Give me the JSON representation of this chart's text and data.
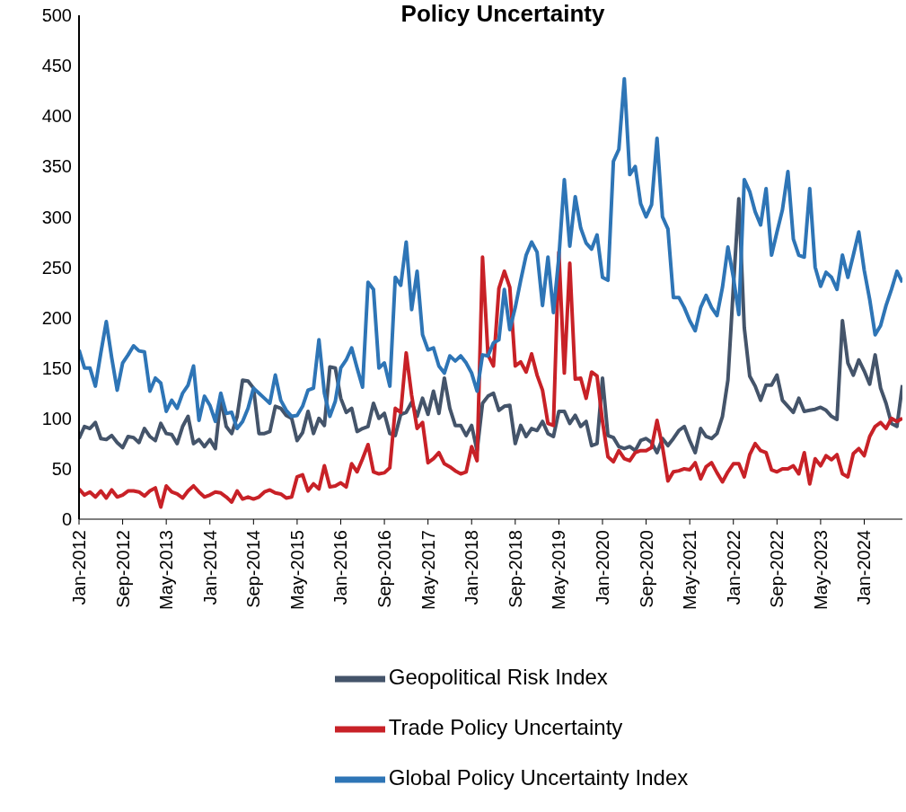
{
  "chart_data": {
    "type": "line",
    "title": "Policy Uncertainty",
    "categories": [
      "Jan-2012",
      null,
      null,
      null,
      null,
      null,
      null,
      null,
      "Sep-2012",
      null,
      null,
      null,
      null,
      null,
      null,
      null,
      "May-2013",
      null,
      null,
      null,
      null,
      null,
      null,
      null,
      "Jan-2014",
      null,
      null,
      null,
      null,
      null,
      null,
      null,
      "Sep-2014",
      null,
      null,
      null,
      null,
      null,
      null,
      null,
      "May-2015",
      null,
      null,
      null,
      null,
      null,
      null,
      null,
      "Jan-2016",
      null,
      null,
      null,
      null,
      null,
      null,
      null,
      "Sep-2016",
      null,
      null,
      null,
      null,
      null,
      null,
      null,
      "May-2017",
      null,
      null,
      null,
      null,
      null,
      null,
      null,
      "Jan-2018",
      null,
      null,
      null,
      null,
      null,
      null,
      null,
      "Sep-2018",
      null,
      null,
      null,
      null,
      null,
      null,
      null,
      "May-2019",
      null,
      null,
      null,
      null,
      null,
      null,
      null,
      "Jan-2020",
      null,
      null,
      null,
      null,
      null,
      null,
      null,
      "Sep-2020",
      null,
      null,
      null,
      null,
      null,
      null,
      null,
      "May-2021",
      null,
      null,
      null,
      null,
      null,
      null,
      null,
      "Jan-2022",
      null,
      null,
      null,
      null,
      null,
      null,
      null,
      "Sep-2022",
      null,
      null,
      null,
      null,
      null,
      null,
      null,
      "May-2023",
      null,
      null,
      null,
      null,
      null,
      null,
      null,
      "Jan-2024",
      null,
      null,
      null,
      null,
      null,
      null,
      null
    ],
    "series": [
      {
        "name": "Geopolitical Risk Index",
        "color": "#44546a",
        "values": [
          80,
          92,
          90,
          96,
          80,
          79,
          83,
          76,
          71,
          82,
          81,
          76,
          90,
          82,
          78,
          95,
          85,
          84,
          75,
          92,
          102,
          75,
          79,
          72,
          79,
          70,
          120,
          92,
          85,
          102,
          138,
          137,
          130,
          85,
          85,
          87,
          112,
          110,
          103,
          100,
          78,
          86,
          107,
          85,
          100,
          93,
          151,
          150,
          120,
          106,
          110,
          87,
          90,
          92,
          115,
          100,
          105,
          85,
          83,
          104,
          106,
          116,
          102,
          120,
          104,
          127,
          105,
          140,
          110,
          93,
          93,
          83,
          93,
          68,
          115,
          122,
          125,
          108,
          112,
          113,
          75,
          93,
          82,
          90,
          88,
          97,
          85,
          82,
          107,
          107,
          95,
          103,
          92,
          97,
          73,
          75,
          140,
          83,
          81,
          72,
          70,
          72,
          68,
          78,
          80,
          76,
          66,
          80,
          73,
          80,
          88,
          92,
          78,
          66,
          90,
          82,
          80,
          85,
          102,
          138,
          230,
          318,
          190,
          142,
          132,
          118,
          133,
          133,
          143,
          118,
          112,
          106,
          120,
          107,
          108,
          109,
          111,
          108,
          102,
          99,
          197,
          155,
          143,
          158,
          147,
          134,
          163,
          130,
          115,
          95,
          92,
          133
        ]
      },
      {
        "name": "Trade Policy Uncertainty",
        "color": "#c82127",
        "values": [
          30,
          24,
          27,
          22,
          28,
          21,
          29,
          22,
          24,
          28,
          28,
          27,
          23,
          28,
          31,
          12,
          33,
          27,
          25,
          21,
          28,
          33,
          27,
          22,
          24,
          27,
          26,
          22,
          17,
          28,
          20,
          22,
          20,
          22,
          27,
          29,
          26,
          25,
          21,
          22,
          42,
          44,
          28,
          35,
          30,
          53,
          32,
          33,
          36,
          32,
          55,
          47,
          60,
          74,
          47,
          45,
          46,
          51,
          110,
          106,
          165,
          123,
          90,
          96,
          56,
          60,
          66,
          55,
          52,
          48,
          45,
          47,
          72,
          58,
          260,
          163,
          152,
          229,
          246,
          230,
          152,
          156,
          146,
          164,
          143,
          128,
          95,
          93,
          265,
          145,
          254,
          139,
          140,
          120,
          146,
          142,
          97,
          62,
          57,
          68,
          60,
          58,
          66,
          68,
          68,
          71,
          98,
          72,
          38,
          47,
          48,
          50,
          49,
          56,
          40,
          52,
          56,
          46,
          37,
          47,
          55,
          55,
          42,
          64,
          75,
          68,
          66,
          49,
          47,
          50,
          50,
          53,
          45,
          66,
          35,
          60,
          53,
          63,
          59,
          64,
          45,
          42,
          65,
          70,
          63,
          82,
          92,
          96,
          90,
          100,
          97,
          100
        ]
      },
      {
        "name": "Global Policy Uncertainty Index",
        "color": "#2e75b6",
        "values": [
          168,
          150,
          150,
          132,
          165,
          196,
          160,
          128,
          155,
          163,
          172,
          167,
          166,
          127,
          140,
          135,
          107,
          118,
          110,
          125,
          133,
          152,
          98,
          122,
          113,
          97,
          125,
          105,
          106,
          90,
          97,
          110,
          130,
          125,
          120,
          115,
          143,
          118,
          108,
          102,
          103,
          112,
          128,
          130,
          178,
          125,
          102,
          117,
          150,
          158,
          170,
          150,
          131,
          235,
          228,
          150,
          155,
          132,
          240,
          232,
          275,
          208,
          246,
          183,
          168,
          170,
          152,
          145,
          162,
          157,
          162,
          155,
          145,
          127,
          163,
          162,
          175,
          178,
          228,
          188,
          210,
          237,
          262,
          275,
          265,
          212,
          260,
          205,
          260,
          337,
          271,
          320,
          289,
          274,
          268,
          282,
          240,
          237,
          355,
          367,
          437,
          342,
          350,
          313,
          300,
          312,
          378,
          300,
          288,
          220,
          220,
          210,
          197,
          187,
          210,
          222,
          210,
          202,
          230,
          270,
          240,
          203,
          337,
          325,
          305,
          292,
          328,
          262,
          285,
          307,
          345,
          278,
          262,
          260,
          328,
          250,
          231,
          245,
          240,
          228,
          262,
          240,
          262,
          285,
          247,
          218,
          183,
          192,
          212,
          228,
          246,
          235
        ]
      }
    ],
    "ylim": [
      0,
      500
    ],
    "yticks": [
      0,
      50,
      100,
      150,
      200,
      250,
      300,
      350,
      400,
      450,
      500
    ],
    "grid": false,
    "legend": "bottom",
    "marker": "none",
    "line_style": "solid"
  }
}
